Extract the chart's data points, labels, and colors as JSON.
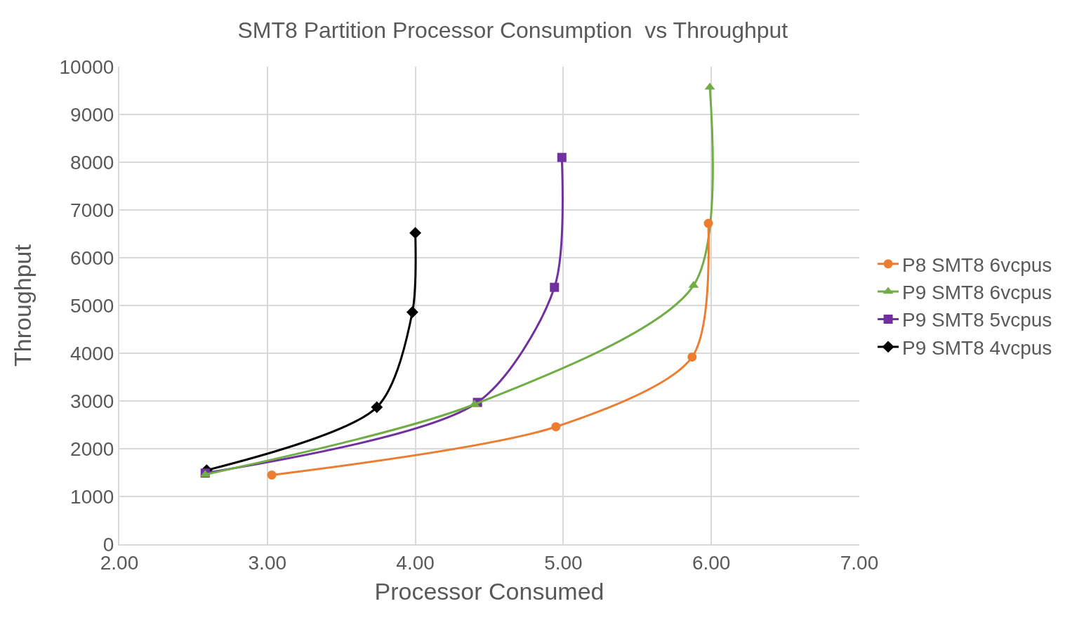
{
  "chart_data": {
    "type": "line",
    "title": "SMT8 Partition Processor Consumption  vs Throughput",
    "xlabel": "Processor Consumed",
    "ylabel": "Throughput",
    "xlim": [
      2,
      7
    ],
    "xticks": [
      {
        "value": 2,
        "label": "2.00"
      },
      {
        "value": 3,
        "label": "3.00"
      },
      {
        "value": 4,
        "label": "4.00"
      },
      {
        "value": 5,
        "label": "5.00"
      },
      {
        "value": 6,
        "label": "6.00"
      },
      {
        "value": 7,
        "label": "7.00"
      }
    ],
    "ylim": [
      0,
      10000
    ],
    "yticks": [
      0,
      1000,
      2000,
      3000,
      4000,
      5000,
      6000,
      7000,
      8000,
      9000,
      10000
    ],
    "grid": true,
    "legend": "right",
    "line_style": "solid",
    "series": [
      {
        "name": "P8 SMT8 6vcpus",
        "color": "#ed7d31",
        "marker": "circle",
        "x": [
          3.03,
          4.95,
          5.87,
          5.98
        ],
        "values": [
          1450,
          2460,
          3920,
          6720
        ]
      },
      {
        "name": "P9 SMT8 6vcpus",
        "color": "#70ad47",
        "marker": "triangle",
        "x": [
          2.58,
          4.4,
          5.88,
          5.99
        ],
        "values": [
          1460,
          2930,
          5420,
          9570
        ]
      },
      {
        "name": "P9 SMT8 5vcpus",
        "color": "#7030a0",
        "marker": "square",
        "x": [
          2.58,
          4.42,
          4.94,
          4.99
        ],
        "values": [
          1490,
          2970,
          5380,
          8100
        ]
      },
      {
        "name": "P9 SMT8 4vcpus",
        "color": "#000000",
        "marker": "diamond",
        "x": [
          2.59,
          3.74,
          3.98,
          4.0
        ],
        "values": [
          1550,
          2870,
          4860,
          6520
        ]
      }
    ]
  }
}
